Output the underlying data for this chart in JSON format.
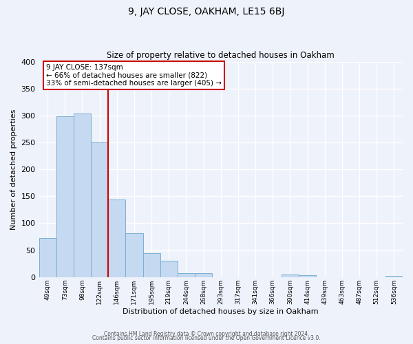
{
  "title": "9, JAY CLOSE, OAKHAM, LE15 6BJ",
  "subtitle": "Size of property relative to detached houses in Oakham",
  "xlabel": "Distribution of detached houses by size in Oakham",
  "ylabel": "Number of detached properties",
  "bin_labels": [
    "49sqm",
    "73sqm",
    "98sqm",
    "122sqm",
    "146sqm",
    "171sqm",
    "195sqm",
    "219sqm",
    "244sqm",
    "268sqm",
    "293sqm",
    "317sqm",
    "341sqm",
    "366sqm",
    "390sqm",
    "414sqm",
    "439sqm",
    "463sqm",
    "487sqm",
    "512sqm",
    "536sqm"
  ],
  "bar_heights": [
    73,
    298,
    304,
    250,
    144,
    82,
    44,
    31,
    8,
    7,
    0,
    0,
    0,
    0,
    5,
    3,
    0,
    0,
    0,
    0,
    2
  ],
  "bar_color": "#c5d9f0",
  "bar_edge_color": "#7bafd4",
  "vline_x_index": 4,
  "vline_color": "#cc0000",
  "annotation_title": "9 JAY CLOSE: 137sqm",
  "annotation_line1": "← 66% of detached houses are smaller (822)",
  "annotation_line2": "33% of semi-detached houses are larger (405) →",
  "annotation_box_color": "#ffffff",
  "annotation_box_edge_color": "#cc0000",
  "ylim": [
    0,
    400
  ],
  "yticks": [
    0,
    50,
    100,
    150,
    200,
    250,
    300,
    350,
    400
  ],
  "footnote1": "Contains HM Land Registry data © Crown copyright and database right 2024.",
  "footnote2": "Contains public sector information licensed under the Open Government Licence v3.0.",
  "background_color": "#eef2fb",
  "grid_color": "#ffffff"
}
